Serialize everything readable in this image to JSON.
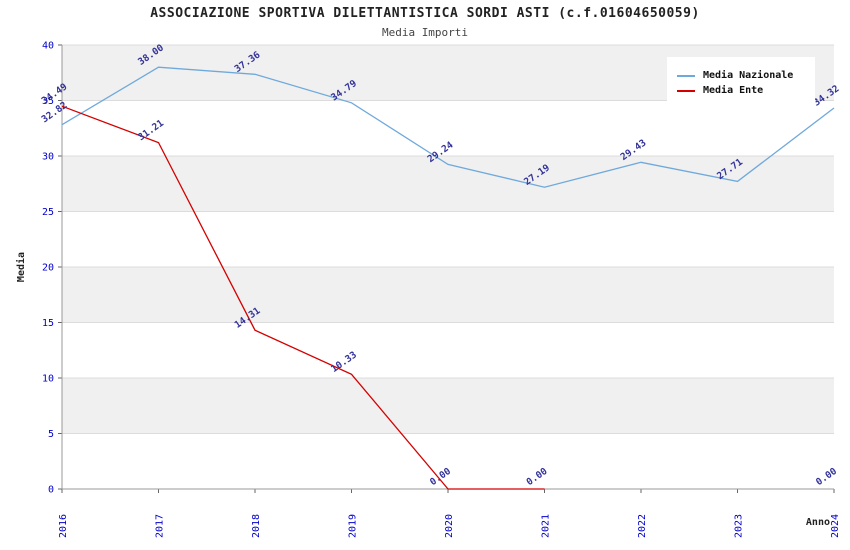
{
  "chart_data": {
    "type": "line",
    "title": "ASSOCIAZIONE SPORTIVA DILETTANTISTICA SORDI ASTI (c.f.01604650059)",
    "subtitle": "Media Importi",
    "xlabel": "Anno",
    "ylabel": "Media",
    "ylim": [
      0,
      40
    ],
    "ytick_step": 5,
    "yticks": [
      0,
      5,
      10,
      15,
      20,
      25,
      30,
      35,
      40
    ],
    "categories": [
      "2016",
      "2017",
      "2018",
      "2019",
      "2020",
      "2021",
      "2022",
      "2023",
      "2024"
    ],
    "series": [
      {
        "name": "Media Nazionale",
        "color": "#6fa9dc",
        "values": [
          32.82,
          38.0,
          37.36,
          34.79,
          29.24,
          27.19,
          29.43,
          27.71,
          34.32
        ]
      },
      {
        "name": "Media Ente",
        "color": "#d40000",
        "values": [
          34.49,
          31.21,
          14.31,
          10.33,
          0.0,
          0.0,
          null,
          null,
          0.0
        ]
      }
    ],
    "legend_position": "top-right",
    "grid": "horizontal-bands",
    "label_rotation": -35,
    "colors": {
      "band": "#f0f0f0",
      "axis": "#999999",
      "gridline": "#dcdcdc",
      "tick_label": "#0000cc",
      "point_label": "#333399",
      "title_text": "#222222"
    }
  }
}
